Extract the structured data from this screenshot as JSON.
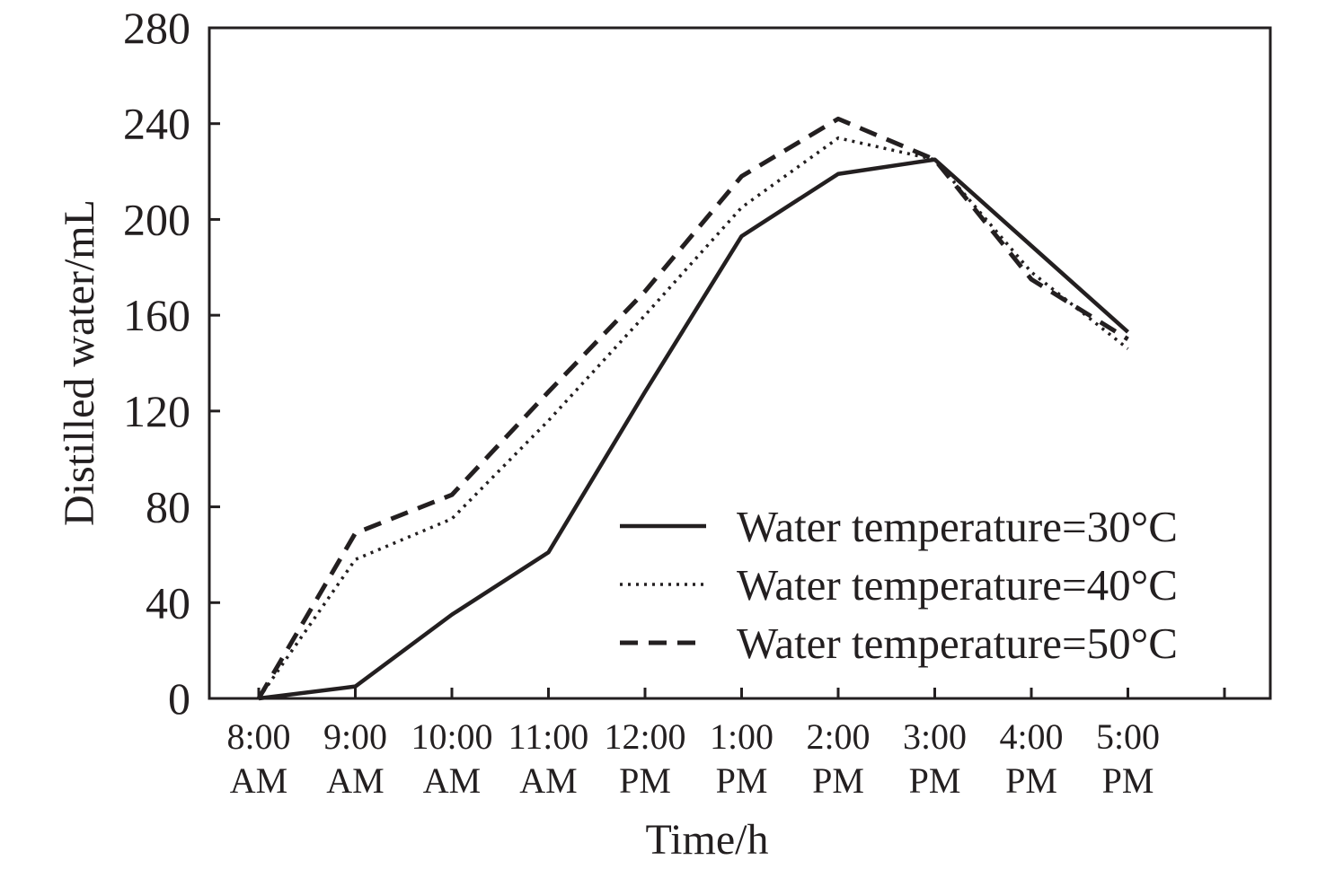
{
  "chart_data": {
    "type": "line",
    "xlabel": "Time/h",
    "ylabel": "Distilled water/mL",
    "ylim": [
      0,
      280
    ],
    "yticks": [
      "0",
      "40",
      "80",
      "120",
      "160",
      "200",
      "240",
      "280"
    ],
    "categories": [
      [
        "8:00",
        "AM"
      ],
      [
        "9:00",
        "AM"
      ],
      [
        "10:00",
        "AM"
      ],
      [
        "11:00",
        "AM"
      ],
      [
        "12:00",
        "PM"
      ],
      [
        "1:00",
        "PM"
      ],
      [
        "2:00",
        "PM"
      ],
      [
        "3:00",
        "PM"
      ],
      [
        "4:00",
        "PM"
      ],
      [
        "5:00",
        "PM"
      ]
    ],
    "grid": false,
    "legend_position": "bottom-right",
    "series": [
      {
        "name": "Water temperature=30°C",
        "line_style": "solid",
        "color": "#231f20",
        "values": [
          0,
          5,
          35,
          61,
          128,
          193,
          219,
          225,
          null,
          153
        ]
      },
      {
        "name": "Water temperature=40°C",
        "line_style": "dotted",
        "color": "#231f20",
        "values": [
          0,
          58,
          75,
          116,
          160,
          205,
          234,
          225,
          178,
          146
        ]
      },
      {
        "name": "Water temperature=50°C",
        "line_style": "dashed",
        "color": "#231f20",
        "values": [
          0,
          69,
          85,
          128,
          170,
          218,
          242,
          225,
          175,
          150
        ]
      }
    ]
  }
}
